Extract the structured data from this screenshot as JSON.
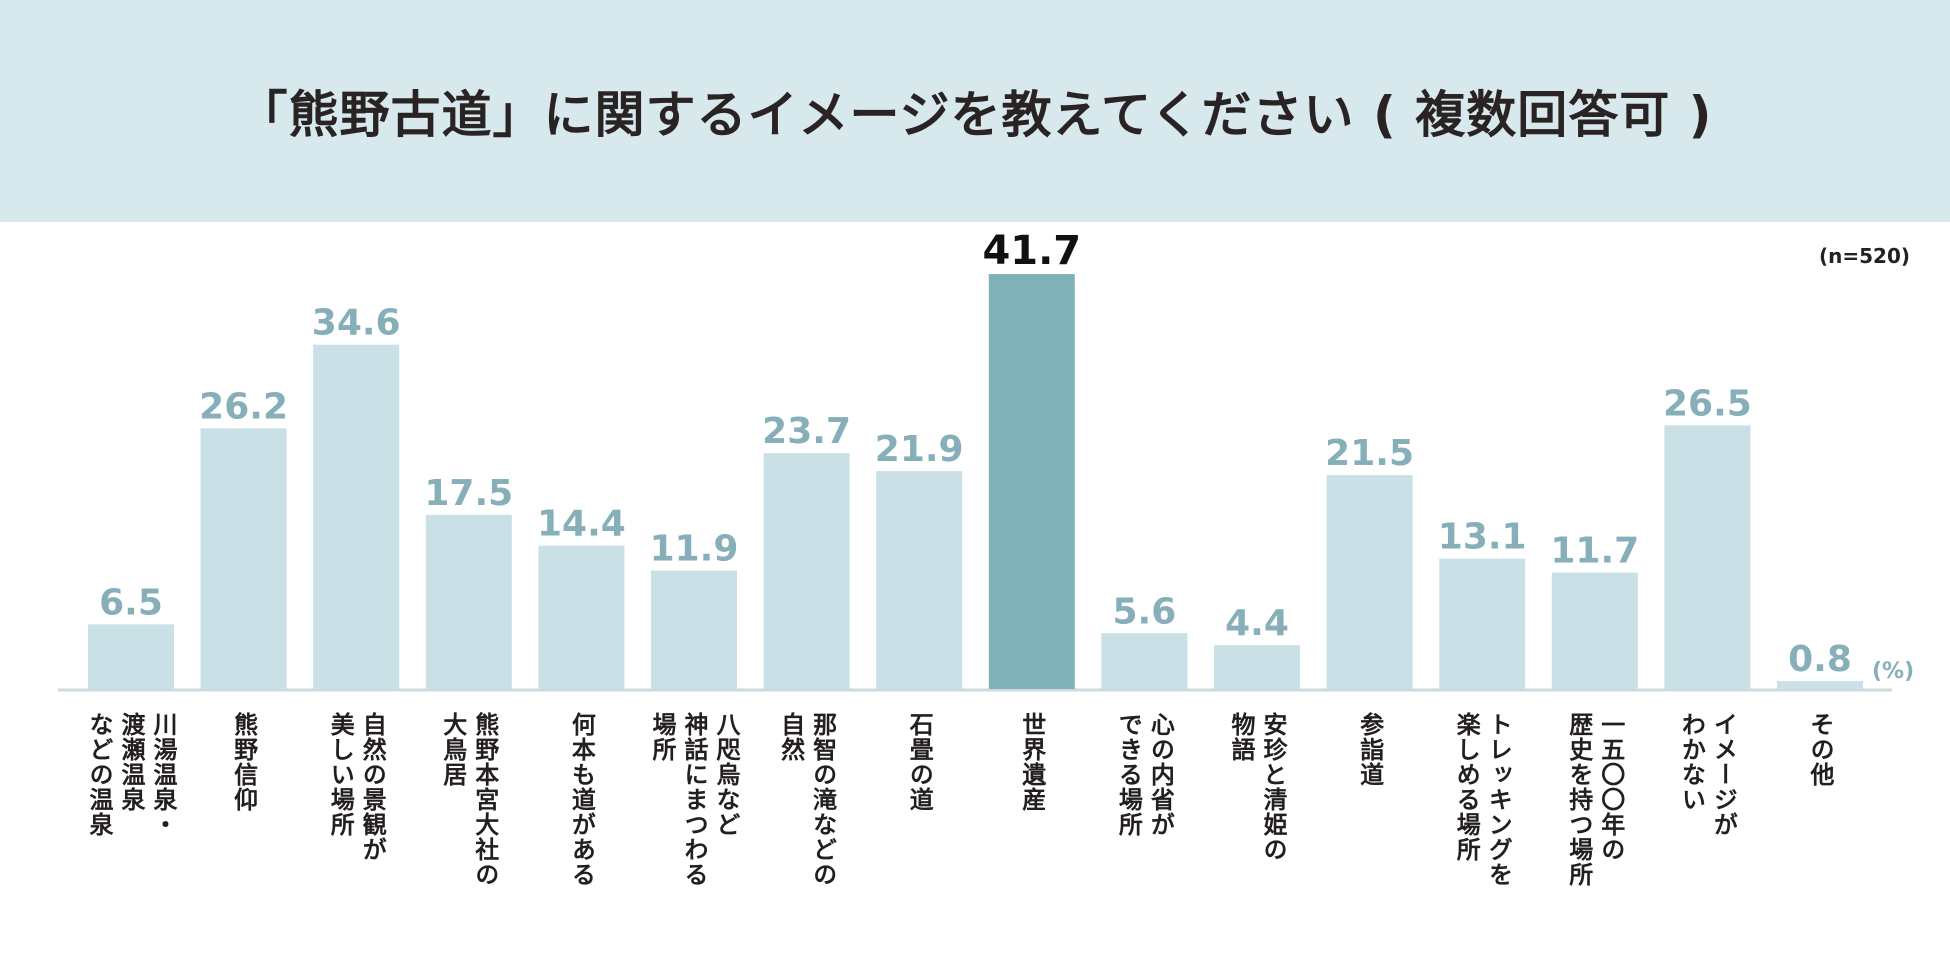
{
  "header": {
    "title": "「熊野古道」に関するイメージを教えてください ( 複数回答可 )"
  },
  "chart_note": "(n=520)",
  "unit_label": "(%)",
  "colors": {
    "header_bg": "#d8e9ee",
    "bar": "#c8e0e6",
    "bar_highlight": "#7fb1b8",
    "value_label": "#86afba",
    "value_label_highlight": "#111111",
    "axis": "#cfd8dc"
  },
  "chart_data": {
    "type": "bar",
    "title": "「熊野古道」に関するイメージを教えてください ( 複数回答可 )",
    "xlabel": "",
    "ylabel": "",
    "unit": "(%)",
    "ylim": [
      0,
      45
    ],
    "highlight_index": 8,
    "categories": [
      "川湯温泉・渡瀬温泉などの温泉",
      "熊野信仰",
      "自然の景観が美しい場所",
      "熊野本宮大社の大鳥居",
      "何本も道がある",
      "八咫烏など神話にまつわる場所",
      "那智の滝などの自然",
      "石畳の道",
      "世界遺産",
      "心の内省ができる場所",
      "安珍と清姫の物語",
      "参詣道",
      "トレッキングを楽しめる場所",
      "一五〇〇年の歴史を持つ場所",
      "イメージがわかない",
      "その他"
    ],
    "category_lines": [
      [
        "川湯温泉・",
        "渡瀬温泉",
        "などの温泉"
      ],
      [
        "熊野信仰"
      ],
      [
        "自然の景観が",
        "美しい場所"
      ],
      [
        "熊野本宮大社の",
        "大鳥居"
      ],
      [
        "何本も道がある"
      ],
      [
        "八咫烏など",
        "神話にまつわる",
        "場所"
      ],
      [
        "那智の滝などの",
        "自然"
      ],
      [
        "石畳の道"
      ],
      [
        "世界遺産"
      ],
      [
        "心の内省が",
        "できる場所"
      ],
      [
        "安珍と清姫の",
        "物語"
      ],
      [
        "参詣道"
      ],
      [
        "トレッキングを",
        "楽しめる場所"
      ],
      [
        "一五〇〇年の",
        "歴史を持つ場所"
      ],
      [
        "イメージが",
        "わかない"
      ],
      [
        "その他"
      ]
    ],
    "values": [
      6.5,
      26.2,
      34.6,
      17.5,
      14.4,
      11.9,
      23.7,
      21.9,
      41.7,
      5.6,
      4.4,
      21.5,
      13.1,
      11.7,
      26.5,
      0.8
    ],
    "value_labels": [
      "6.5",
      "26.2",
      "34.6",
      "17.5",
      "14.4",
      "11.9",
      "23.7",
      "21.9",
      "41.7",
      "5.6",
      "4.4",
      "21.5",
      "13.1",
      "11.7",
      "26.5",
      "0.8"
    ]
  }
}
